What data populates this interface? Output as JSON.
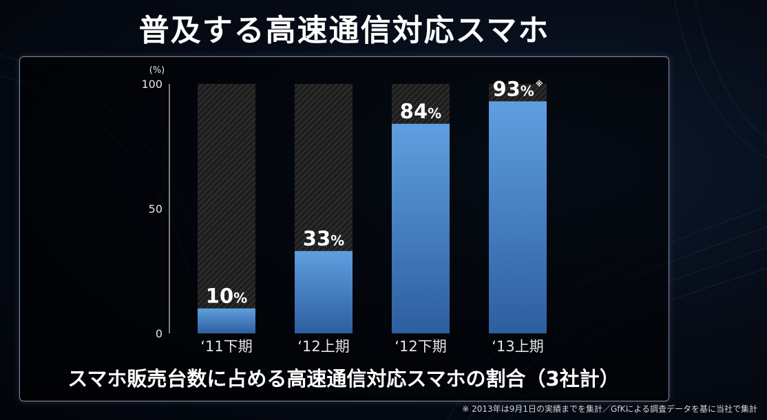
{
  "title": "普及する高速通信対応スマホ",
  "caption": "スマホ販売台数に占める高速通信対応スマホの割合（3社計）",
  "footnote": "※ 2013年は9月1日の実績までを集計／GfKによる調査データを基に当社で集計",
  "chart_data": {
    "type": "bar",
    "unit_label": "(%)",
    "categories": [
      "‘11下期",
      "‘12上期",
      "‘12下期",
      "‘13上期"
    ],
    "values": [
      10,
      33,
      84,
      93
    ],
    "value_labels": [
      "10",
      "33",
      "84",
      "93"
    ],
    "value_suffix": "%",
    "value_marks": [
      "",
      "",
      "",
      "※"
    ],
    "ylim": [
      0,
      100
    ],
    "yticks": [
      0,
      50,
      100
    ],
    "colors": {
      "bar": "#4a86c8",
      "bar_top": "#5b9ad9",
      "bar_bottom": "#2f62a3",
      "track": "#2a2a2a"
    }
  }
}
